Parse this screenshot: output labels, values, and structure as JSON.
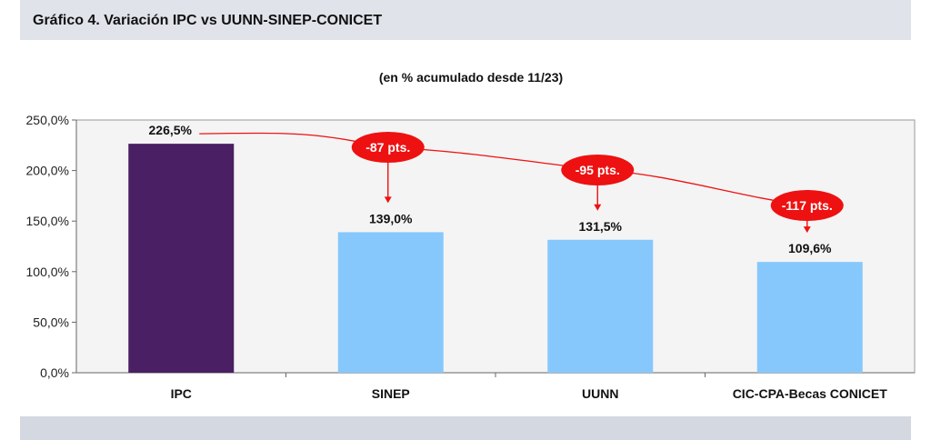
{
  "header": {
    "title": "Gráfico 4. Variación IPC vs UUNN-SINEP-CONICET"
  },
  "chart_data": {
    "type": "bar",
    "title": "Gráfico 4. Variación IPC vs UUNN-SINEP-CONICET",
    "subtitle": "(en % acumulado desde 11/23)",
    "categories": [
      "IPC",
      "SINEP",
      "UUNN",
      "CIC-CPA-Becas CONICET"
    ],
    "values": [
      226.5,
      139.0,
      131.5,
      109.6
    ],
    "value_labels": [
      "226,5%",
      "139,0%",
      "131,5%",
      "109,6%"
    ],
    "bar_colors": [
      "#4a1f63",
      "#86c8fc",
      "#86c8fc",
      "#86c8fc"
    ],
    "ylim": [
      0,
      250
    ],
    "yticks": [
      0,
      50,
      100,
      150,
      200,
      250
    ],
    "ytick_labels": [
      "0,0%",
      "50,0%",
      "100,0%",
      "150,0%",
      "200,0%",
      "250,0%"
    ],
    "xlabel": "",
    "ylabel": "",
    "grid": false,
    "annotations": [
      {
        "target": "SINEP",
        "text": "-87 pts."
      },
      {
        "target": "UUNN",
        "text": "-95 pts."
      },
      {
        "target": "CIC-CPA-Becas CONICET",
        "text": "-117 pts."
      }
    ],
    "annotation_color": "#ee1111",
    "plot_background": "#f4f4f4"
  }
}
